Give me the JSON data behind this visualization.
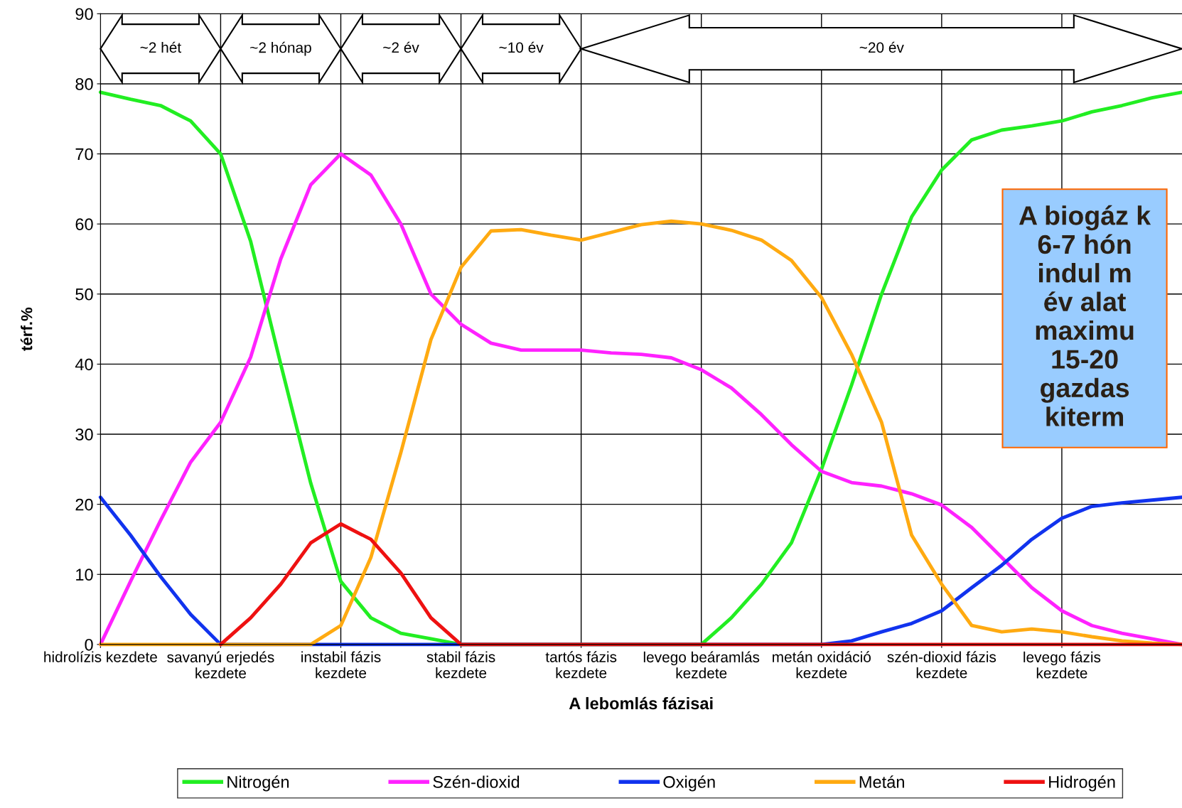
{
  "chart_data": {
    "type": "line",
    "xlabel": "A lebomlás fázisai",
    "ylabel": "térf.%",
    "categories": [
      "hidrolízis kezdete",
      null,
      null,
      null,
      "savanyú erjedés\nkezdete",
      null,
      null,
      null,
      "instabil fázis\nkezdete",
      null,
      null,
      null,
      "stabil fázis\nkezdete",
      null,
      null,
      null,
      "tartós fázis\nkezdete",
      null,
      null,
      null,
      "levego beáramlás\nkezdete",
      null,
      null,
      null,
      "metán oxidáció\nkezdete",
      null,
      null,
      null,
      "szén-dioxid fázis\nkezdete",
      null,
      null,
      null,
      "levego fázis\nkezdete",
      null,
      null,
      null,
      null
    ],
    "ylim": [
      0,
      90
    ],
    "yticks": [
      0,
      10,
      20,
      30,
      40,
      50,
      60,
      70,
      80,
      90
    ],
    "grid": true,
    "legend": "bottom",
    "marker": "none",
    "line_style": "solid",
    "series": [
      {
        "name": "Nitrogén",
        "color": "#22ee22",
        "values": [
          78.8,
          77.8,
          76.9,
          74.7,
          70,
          57.5,
          40,
          23,
          9,
          3.8,
          1.6,
          0.8,
          0,
          0,
          0,
          0,
          0,
          0,
          0,
          0,
          0,
          3.8,
          8.6,
          14.5,
          25,
          37,
          50,
          61,
          67.7,
          72,
          73.4,
          74,
          74.7,
          76,
          76.9,
          78,
          78.8
        ]
      },
      {
        "name": "Szén-dioxid",
        "color": "#ff22ff",
        "values": [
          0,
          9,
          17.7,
          26,
          31.7,
          41,
          55,
          65.6,
          70,
          67,
          60,
          50,
          45.7,
          43,
          42,
          42,
          42,
          41.6,
          41.4,
          40.9,
          39.2,
          36.6,
          32.8,
          28.5,
          24.7,
          23.1,
          22.6,
          21.5,
          19.9,
          16.7,
          12.4,
          8.1,
          4.8,
          2.7,
          1.6,
          0.8,
          0
        ]
      },
      {
        "name": "Oxigén",
        "color": "#1133ee",
        "values": [
          21,
          15.6,
          9.7,
          4.3,
          0,
          0,
          0,
          0,
          0,
          0,
          0,
          0,
          0,
          0,
          0,
          0,
          0,
          0,
          0,
          0,
          0,
          0,
          0,
          0,
          0,
          0.5,
          1.8,
          3,
          4.8,
          8.1,
          11.3,
          15,
          18,
          19.7,
          20.2,
          20.6,
          21
        ]
      },
      {
        "name": "Metán",
        "color": "#ffaa11",
        "values": [
          0,
          0,
          0,
          0,
          0,
          0,
          0,
          0,
          2.7,
          12.4,
          27.4,
          43.5,
          53.8,
          59,
          59.2,
          58.4,
          57.7,
          58.8,
          59.9,
          60.4,
          60,
          59.1,
          57.7,
          54.8,
          49.5,
          41.4,
          31.7,
          15.6,
          8.6,
          2.7,
          1.8,
          2.2,
          1.8,
          1.1,
          0.5,
          0.2,
          0
        ]
      },
      {
        "name": "Hidrogén",
        "color": "#ee1111",
        "values": [
          null,
          null,
          null,
          null,
          0,
          3.8,
          8.6,
          14.5,
          17.2,
          15,
          10.2,
          3.8,
          0,
          0,
          0,
          0,
          0,
          0,
          0,
          0,
          0,
          0,
          0,
          0,
          0,
          0,
          0,
          0,
          0,
          0,
          0,
          0,
          0,
          0,
          0,
          0,
          0
        ]
      }
    ],
    "annotations": [
      "~2 hét",
      "~2 hónap",
      "~2 év",
      "~10 év",
      "~20 év",
      "A biogáz k\n6-7 hón\nindul m\név alat\nmaximu\n15-20\ngazdas\nkiterm"
    ]
  }
}
